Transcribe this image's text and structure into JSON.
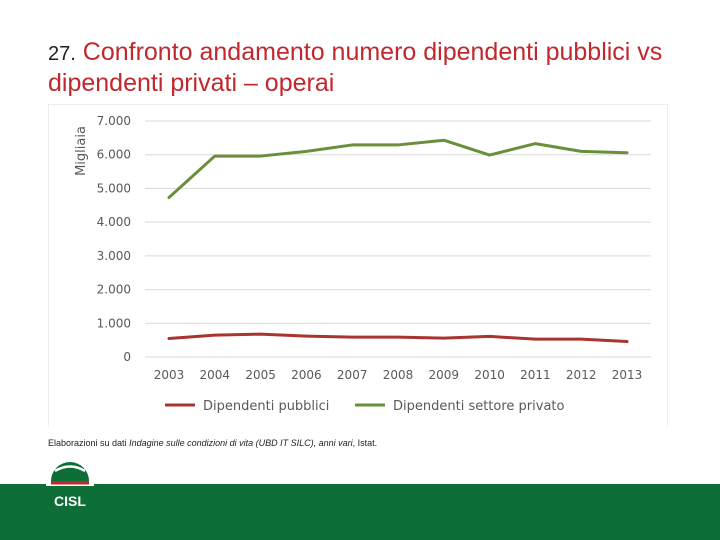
{
  "slide": {
    "number": "27.",
    "title": "Confronto andamento numero dipendenti pubblici vs dipendenti privati – operai",
    "source_prefix": "Elaborazioni su dati ",
    "source_italic": "Indagine sulle condizioni di vita (UBD IT SILC), anni vari",
    "source_suffix": ", Istat.",
    "logo_text": "CISL"
  },
  "colors": {
    "title": "#c0282d",
    "series_public": "#a8352f",
    "series_private": "#6a8f3a",
    "footer": "#0e6e37"
  },
  "chart_data": {
    "type": "line",
    "ylabel": "Migliaia",
    "xlabel": "",
    "ylim": [
      0,
      7000
    ],
    "yticks": [
      "0",
      "1.000",
      "2.000",
      "3.000",
      "4.000",
      "5.000",
      "6.000",
      "7.000"
    ],
    "yticks_values": [
      0,
      1000,
      2000,
      3000,
      4000,
      5000,
      6000,
      7000
    ],
    "grid": true,
    "legend_position": "bottom",
    "categories": [
      "2003",
      "2004",
      "2005",
      "2006",
      "2007",
      "2008",
      "2009",
      "2010",
      "2011",
      "2012",
      "2013"
    ],
    "series": [
      {
        "name": "Dipendenti pubblici",
        "color": "#a8352f",
        "values": [
          550,
          650,
          680,
          620,
          590,
          590,
          560,
          610,
          530,
          530,
          460
        ]
      },
      {
        "name": "Dipendenti settore privato",
        "color": "#6a8f3a",
        "values": [
          4730,
          5960,
          5960,
          6100,
          6290,
          6290,
          6430,
          5990,
          6330,
          6100,
          6060
        ]
      }
    ]
  }
}
